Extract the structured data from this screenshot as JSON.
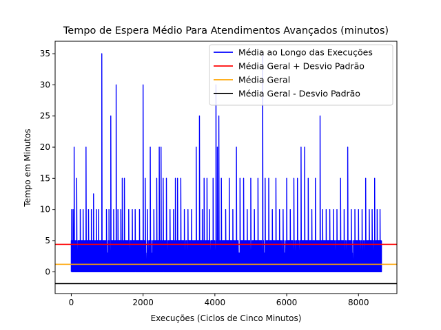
{
  "chart_data": {
    "type": "line",
    "title": "Tempo de Espera Médio Para Atendimentos Avançados (minutos)",
    "xlabel": "Execuções (Ciclos de Cinco Minutos)",
    "ylabel": "Tempo em Minutos",
    "xlim": [
      -450,
      9070
    ],
    "ylim": [
      -3.5,
      37
    ],
    "xticks": [
      0,
      2000,
      4000,
      6000,
      8000
    ],
    "yticks": [
      0,
      5,
      10,
      15,
      20,
      25,
      30,
      35
    ],
    "grid": false,
    "legend_position": "top-right",
    "colors": {
      "series": "#0000ff",
      "upper": "#ff0000",
      "mean": "#ffa500",
      "lower": "#000000"
    },
    "series": [
      {
        "name": "Média ao Longo das Execuções",
        "color": "#0000ff",
        "x_range": [
          0,
          8640
        ],
        "base_max": 5,
        "peaks": [
          {
            "x": 10,
            "y": 10
          },
          {
            "x": 45,
            "y": 10
          },
          {
            "x": 80,
            "y": 20
          },
          {
            "x": 150,
            "y": 15
          },
          {
            "x": 250,
            "y": 10
          },
          {
            "x": 330,
            "y": 10
          },
          {
            "x": 410,
            "y": 20
          },
          {
            "x": 480,
            "y": 10
          },
          {
            "x": 560,
            "y": 10
          },
          {
            "x": 620,
            "y": 12.5
          },
          {
            "x": 700,
            "y": 10
          },
          {
            "x": 760,
            "y": 10
          },
          {
            "x": 850,
            "y": 35
          },
          {
            "x": 980,
            "y": 10
          },
          {
            "x": 1050,
            "y": 10
          },
          {
            "x": 1100,
            "y": 25
          },
          {
            "x": 1180,
            "y": 10
          },
          {
            "x": 1250,
            "y": 30
          },
          {
            "x": 1300,
            "y": 10
          },
          {
            "x": 1380,
            "y": 10
          },
          {
            "x": 1420,
            "y": 15
          },
          {
            "x": 1480,
            "y": 15
          },
          {
            "x": 1600,
            "y": 10
          },
          {
            "x": 1700,
            "y": 10
          },
          {
            "x": 1780,
            "y": 10
          },
          {
            "x": 1900,
            "y": 10
          },
          {
            "x": 2000,
            "y": 30
          },
          {
            "x": 2060,
            "y": 15
          },
          {
            "x": 2120,
            "y": 10
          },
          {
            "x": 2200,
            "y": 20
          },
          {
            "x": 2300,
            "y": 10
          },
          {
            "x": 2380,
            "y": 15
          },
          {
            "x": 2450,
            "y": 20
          },
          {
            "x": 2500,
            "y": 20
          },
          {
            "x": 2560,
            "y": 15
          },
          {
            "x": 2650,
            "y": 15
          },
          {
            "x": 2750,
            "y": 10
          },
          {
            "x": 2850,
            "y": 10
          },
          {
            "x": 2900,
            "y": 15
          },
          {
            "x": 2960,
            "y": 15
          },
          {
            "x": 3050,
            "y": 15
          },
          {
            "x": 3150,
            "y": 10
          },
          {
            "x": 3250,
            "y": 10
          },
          {
            "x": 3350,
            "y": 10
          },
          {
            "x": 3480,
            "y": 20
          },
          {
            "x": 3570,
            "y": 25
          },
          {
            "x": 3650,
            "y": 10
          },
          {
            "x": 3700,
            "y": 15
          },
          {
            "x": 3780,
            "y": 15
          },
          {
            "x": 3850,
            "y": 10
          },
          {
            "x": 3950,
            "y": 15
          },
          {
            "x": 4030,
            "y": 30
          },
          {
            "x": 4070,
            "y": 20
          },
          {
            "x": 4110,
            "y": 25
          },
          {
            "x": 4180,
            "y": 15
          },
          {
            "x": 4300,
            "y": 10
          },
          {
            "x": 4400,
            "y": 15
          },
          {
            "x": 4500,
            "y": 10
          },
          {
            "x": 4600,
            "y": 20
          },
          {
            "x": 4700,
            "y": 15
          },
          {
            "x": 4800,
            "y": 15
          },
          {
            "x": 4900,
            "y": 10
          },
          {
            "x": 5000,
            "y": 15
          },
          {
            "x": 5100,
            "y": 10
          },
          {
            "x": 5200,
            "y": 15
          },
          {
            "x": 5330,
            "y": 35
          },
          {
            "x": 5400,
            "y": 15
          },
          {
            "x": 5500,
            "y": 15
          },
          {
            "x": 5600,
            "y": 10
          },
          {
            "x": 5700,
            "y": 15
          },
          {
            "x": 5800,
            "y": 10
          },
          {
            "x": 5900,
            "y": 10
          },
          {
            "x": 6000,
            "y": 15
          },
          {
            "x": 6100,
            "y": 10
          },
          {
            "x": 6200,
            "y": 15
          },
          {
            "x": 6300,
            "y": 15
          },
          {
            "x": 6400,
            "y": 20
          },
          {
            "x": 6500,
            "y": 20
          },
          {
            "x": 6600,
            "y": 15
          },
          {
            "x": 6700,
            "y": 10
          },
          {
            "x": 6800,
            "y": 15
          },
          {
            "x": 6930,
            "y": 25
          },
          {
            "x": 7000,
            "y": 10
          },
          {
            "x": 7100,
            "y": 10
          },
          {
            "x": 7200,
            "y": 10
          },
          {
            "x": 7300,
            "y": 10
          },
          {
            "x": 7400,
            "y": 10
          },
          {
            "x": 7500,
            "y": 15
          },
          {
            "x": 7600,
            "y": 10
          },
          {
            "x": 7700,
            "y": 20
          },
          {
            "x": 7800,
            "y": 10
          },
          {
            "x": 7900,
            "y": 10
          },
          {
            "x": 8000,
            "y": 10
          },
          {
            "x": 8100,
            "y": 10
          },
          {
            "x": 8200,
            "y": 15
          },
          {
            "x": 8300,
            "y": 10
          },
          {
            "x": 8380,
            "y": 10
          },
          {
            "x": 8450,
            "y": 15
          },
          {
            "x": 8520,
            "y": 10
          },
          {
            "x": 8600,
            "y": 10
          }
        ]
      },
      {
        "name": "Média Geral + Desvio Padrão",
        "color": "#ff0000",
        "y": 4.4
      },
      {
        "name": "Média Geral",
        "color": "#ffa500",
        "y": 1.2
      },
      {
        "name": "Média Geral - Desvio Padrão",
        "color": "#000000",
        "y": -1.9
      }
    ]
  }
}
